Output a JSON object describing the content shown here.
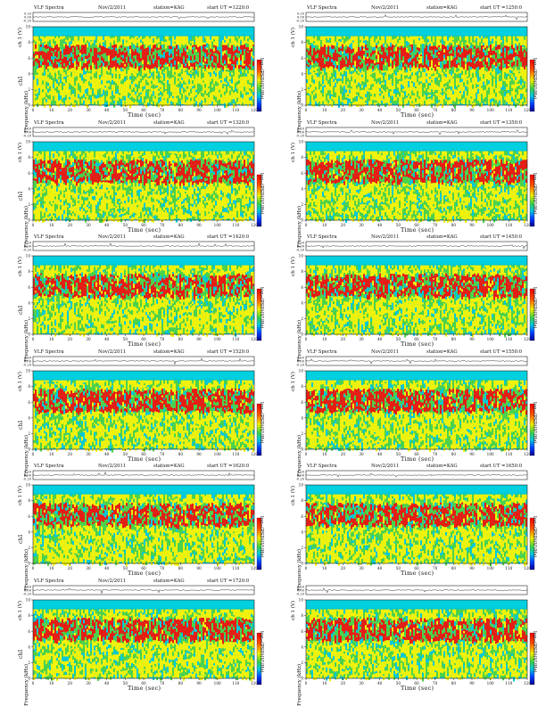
{
  "chart_data": [
    {
      "type": "heatmap",
      "title": "VLF Spectra",
      "date": "Nov/2/2011",
      "station": "station=KAG",
      "start_ut": "start  UT =1220:0",
      "ylabel_top": "ch 1 (V)",
      "ylabel_main": "Frequency  (kHz)",
      "ylabel_main_prefix": "ch1",
      "xlabel": "Time  (sec)",
      "colorbar_label": "log₁₀(PSD)(V²/Hz)",
      "xlim": [
        0,
        120
      ],
      "ylim": [
        0,
        10
      ],
      "xticks": [
        "0",
        "10",
        "20",
        "30",
        "40",
        "50",
        "60",
        "70",
        "80",
        "90",
        "100",
        "110",
        "120"
      ],
      "yticks": [
        "0",
        "2",
        "4",
        "6",
        "8",
        "10"
      ],
      "top_yticks": [
        "0.20",
        "0.00",
        "-0.20"
      ]
    },
    {
      "type": "heatmap",
      "title": "VLF Spectra",
      "date": "Nov/2/2011",
      "station": "station=KAG",
      "start_ut": "start  UT =1250:0",
      "ylabel_top": "ch 1 (V)",
      "ylabel_main": "Frequency  (kHz)",
      "ylabel_main_prefix": "",
      "xlabel": "Time  (sec)",
      "colorbar_label": "log₁₀(PSD)(V²/Hz)",
      "xlim": [
        0,
        120
      ],
      "ylim": [
        0,
        10
      ],
      "xticks": [
        "0",
        "10",
        "20",
        "30",
        "40",
        "50",
        "60",
        "70",
        "80",
        "90",
        "100",
        "110",
        "120"
      ],
      "yticks": [
        "0",
        "2",
        "4",
        "6",
        "8",
        "10"
      ],
      "top_yticks": [
        "0.20",
        "0.00",
        "-0.20"
      ]
    },
    {
      "type": "heatmap",
      "title": "VLF Spectra",
      "date": "Nov/2/2011",
      "station": "station=KAG",
      "start_ut": "start  UT =1320:0",
      "ylabel_top": "ch 1 (V)",
      "ylabel_main": "Frequency  (kHz)",
      "ylabel_main_prefix": "ch1",
      "xlabel": "Time  (sec)",
      "colorbar_label": "log₁₀(PSD)(V²/Hz)",
      "xlim": [
        0,
        120
      ],
      "ylim": [
        0,
        10
      ],
      "xticks": [
        "0",
        "10",
        "20",
        "30",
        "40",
        "50",
        "60",
        "70",
        "80",
        "90",
        "100",
        "110",
        "120"
      ],
      "yticks": [
        "0",
        "2",
        "4",
        "6",
        "8",
        "10"
      ],
      "top_yticks": [
        "0.20",
        "0.00",
        "-0.20"
      ]
    },
    {
      "type": "heatmap",
      "title": "VLF Spectra",
      "date": "Nov/2/2011",
      "station": "station=KAG",
      "start_ut": "start  UT =1350:0",
      "ylabel_top": "ch 1 (V)",
      "ylabel_main": "Frequency  (kHz)",
      "ylabel_main_prefix": "",
      "xlabel": "Time  (sec)",
      "colorbar_label": "log₁₀(PSD)(V²/Hz)",
      "xlim": [
        0,
        120
      ],
      "ylim": [
        0,
        10
      ],
      "xticks": [
        "0",
        "10",
        "20",
        "30",
        "40",
        "50",
        "60",
        "70",
        "80",
        "90",
        "100",
        "110",
        "120"
      ],
      "yticks": [
        "0",
        "2",
        "4",
        "6",
        "8",
        "10"
      ],
      "top_yticks": [
        "0.20",
        "0.00",
        "-0.20"
      ]
    },
    {
      "type": "heatmap",
      "title": "VLF Spectra",
      "date": "Nov/2/2011",
      "station": "station=KAG",
      "start_ut": "start  UT =1420:0",
      "ylabel_top": "ch 1 (V)",
      "ylabel_main": "Frequency  (kHz)",
      "ylabel_main_prefix": "ch1",
      "xlabel": "Time  (sec)",
      "colorbar_label": "log₁₀(PSD)(V²/Hz)",
      "xlim": [
        0,
        120
      ],
      "ylim": [
        0,
        10
      ],
      "xticks": [
        "0",
        "10",
        "20",
        "30",
        "40",
        "50",
        "60",
        "70",
        "80",
        "90",
        "100",
        "110",
        "120"
      ],
      "yticks": [
        "0",
        "2",
        "4",
        "6",
        "8",
        "10"
      ],
      "top_yticks": [
        "0.20",
        "0.00",
        "-0.20"
      ]
    },
    {
      "type": "heatmap",
      "title": "VLF Spectra",
      "date": "Nov/2/2011",
      "station": "station=KAG",
      "start_ut": "start  UT =1450:0",
      "ylabel_top": "ch 1 (V)",
      "ylabel_main": "Frequency  (kHz)",
      "ylabel_main_prefix": "",
      "xlabel": "Time  (sec)",
      "colorbar_label": "log₁₀(PSD)(V²/Hz)",
      "xlim": [
        0,
        120
      ],
      "ylim": [
        0,
        10
      ],
      "xticks": [
        "0",
        "10",
        "20",
        "30",
        "40",
        "50",
        "60",
        "70",
        "80",
        "90",
        "100",
        "110",
        "120"
      ],
      "yticks": [
        "0",
        "2",
        "4",
        "6",
        "8",
        "10"
      ],
      "top_yticks": [
        "0.20",
        "0.00",
        "-0.20"
      ]
    },
    {
      "type": "heatmap",
      "title": "VLF Spectra",
      "date": "Nov/2/2011",
      "station": "station=KAG",
      "start_ut": "start  UT =1520:0",
      "ylabel_top": "ch 1 (V)",
      "ylabel_main": "Frequency  (kHz)",
      "ylabel_main_prefix": "ch1",
      "xlabel": "Time  (sec)",
      "colorbar_label": "log₁₀(PSD)(V²/Hz)",
      "xlim": [
        0,
        120
      ],
      "ylim": [
        0,
        10
      ],
      "xticks": [
        "0",
        "10",
        "20",
        "30",
        "40",
        "50",
        "60",
        "70",
        "80",
        "90",
        "100",
        "110",
        "120"
      ],
      "yticks": [
        "0",
        "2",
        "4",
        "6",
        "8",
        "10"
      ],
      "top_yticks": [
        "0.20",
        "0.00",
        "-0.20"
      ]
    },
    {
      "type": "heatmap",
      "title": "VLF Spectra",
      "date": "Nov/2/2011",
      "station": "station=KAG",
      "start_ut": "start  UT =1550:0",
      "ylabel_top": "ch 1 (V)",
      "ylabel_main": "Frequency  (kHz)",
      "ylabel_main_prefix": "",
      "xlabel": "Time  (sec)",
      "colorbar_label": "log₁₀(PSD)(V²/Hz)",
      "xlim": [
        0,
        120
      ],
      "ylim": [
        0,
        10
      ],
      "xticks": [
        "0",
        "10",
        "20",
        "30",
        "40",
        "50",
        "60",
        "70",
        "80",
        "90",
        "100",
        "110",
        "120"
      ],
      "yticks": [
        "0",
        "2",
        "4",
        "6",
        "8",
        "10"
      ],
      "top_yticks": [
        "0.20",
        "0.00",
        "-0.20"
      ]
    },
    {
      "type": "heatmap",
      "title": "VLF Spectra",
      "date": "Nov/2/2011",
      "station": "station=KAG",
      "start_ut": "start  UT =1620:0",
      "ylabel_top": "ch 1 (V)",
      "ylabel_main": "Frequency  (kHz)",
      "ylabel_main_prefix": "ch1",
      "xlabel": "Time  (sec)",
      "colorbar_label": "log₁₀(PSD)(V²/Hz)",
      "xlim": [
        0,
        120
      ],
      "ylim": [
        0,
        10
      ],
      "xticks": [
        "0",
        "10",
        "20",
        "30",
        "40",
        "50",
        "60",
        "70",
        "80",
        "90",
        "100",
        "110",
        "120"
      ],
      "yticks": [
        "0",
        "2",
        "4",
        "6",
        "8",
        "10"
      ],
      "top_yticks": [
        "0.20",
        "0.00",
        "-0.20"
      ]
    },
    {
      "type": "heatmap",
      "title": "VLF Spectra",
      "date": "Nov/2/2011",
      "station": "station=KAG",
      "start_ut": "start  UT =1650:0",
      "ylabel_top": "ch 1 (V)",
      "ylabel_main": "Frequency  (kHz)",
      "ylabel_main_prefix": "",
      "xlabel": "Time  (sec)",
      "colorbar_label": "log₁₀(PSD)(V²/Hz)",
      "xlim": [
        0,
        120
      ],
      "ylim": [
        0,
        10
      ],
      "xticks": [
        "0",
        "10",
        "20",
        "30",
        "40",
        "50",
        "60",
        "70",
        "80",
        "90",
        "100",
        "110",
        "120"
      ],
      "yticks": [
        "0",
        "2",
        "4",
        "6",
        "8",
        "10"
      ],
      "top_yticks": [
        "0.20",
        "0.00",
        "-0.20"
      ]
    },
    {
      "type": "heatmap",
      "title": "VLF Spectra",
      "date": "Nov/2/2011",
      "station": "station=KAG",
      "start_ut": "start  UT =1720:0",
      "ylabel_top": "ch 1 (V)",
      "ylabel_main": "Frequency  (kHz)",
      "ylabel_main_prefix": "ch1",
      "xlabel": "Time  (sec)",
      "colorbar_label": "log₁₀(PSD)(V²/Hz)",
      "xlim": [
        0,
        120
      ],
      "ylim": [
        0,
        10
      ],
      "xticks": [
        "0",
        "10",
        "20",
        "30",
        "40",
        "50",
        "60",
        "70",
        "80",
        "90",
        "100",
        "110",
        "120"
      ],
      "yticks": [
        "0",
        "2",
        "4",
        "6",
        "8",
        "10"
      ],
      "top_yticks": [
        "0.20",
        "0.00",
        "-0.20"
      ]
    },
    {
      "type": "heatmap",
      "title": "",
      "date": "",
      "station": "",
      "start_ut": "",
      "ylabel_top": "ch 1 (V)",
      "ylabel_main": "Frequency  (kHz)",
      "ylabel_main_prefix": "",
      "xlabel": "Time  (sec)",
      "colorbar_label": "log₁₀(PSD)(V²/Hz)",
      "xlim": [
        0,
        120
      ],
      "ylim": [
        0,
        10
      ],
      "xticks": [
        "0",
        "10",
        "20",
        "30",
        "40",
        "50",
        "60",
        "70",
        "80",
        "90",
        "100",
        "110",
        "120"
      ],
      "yticks": [
        "0",
        "2",
        "4",
        "6",
        "8",
        "10"
      ],
      "top_yticks": [
        "0.20",
        "0.00",
        "-0.20"
      ]
    }
  ],
  "colors": {
    "background": "#00c8d8",
    "low": "#4dd24a",
    "mid": "#f2f20a",
    "high": "#e81c12",
    "peak": "#ff2a1a",
    "band_top": "#00d0e0"
  }
}
